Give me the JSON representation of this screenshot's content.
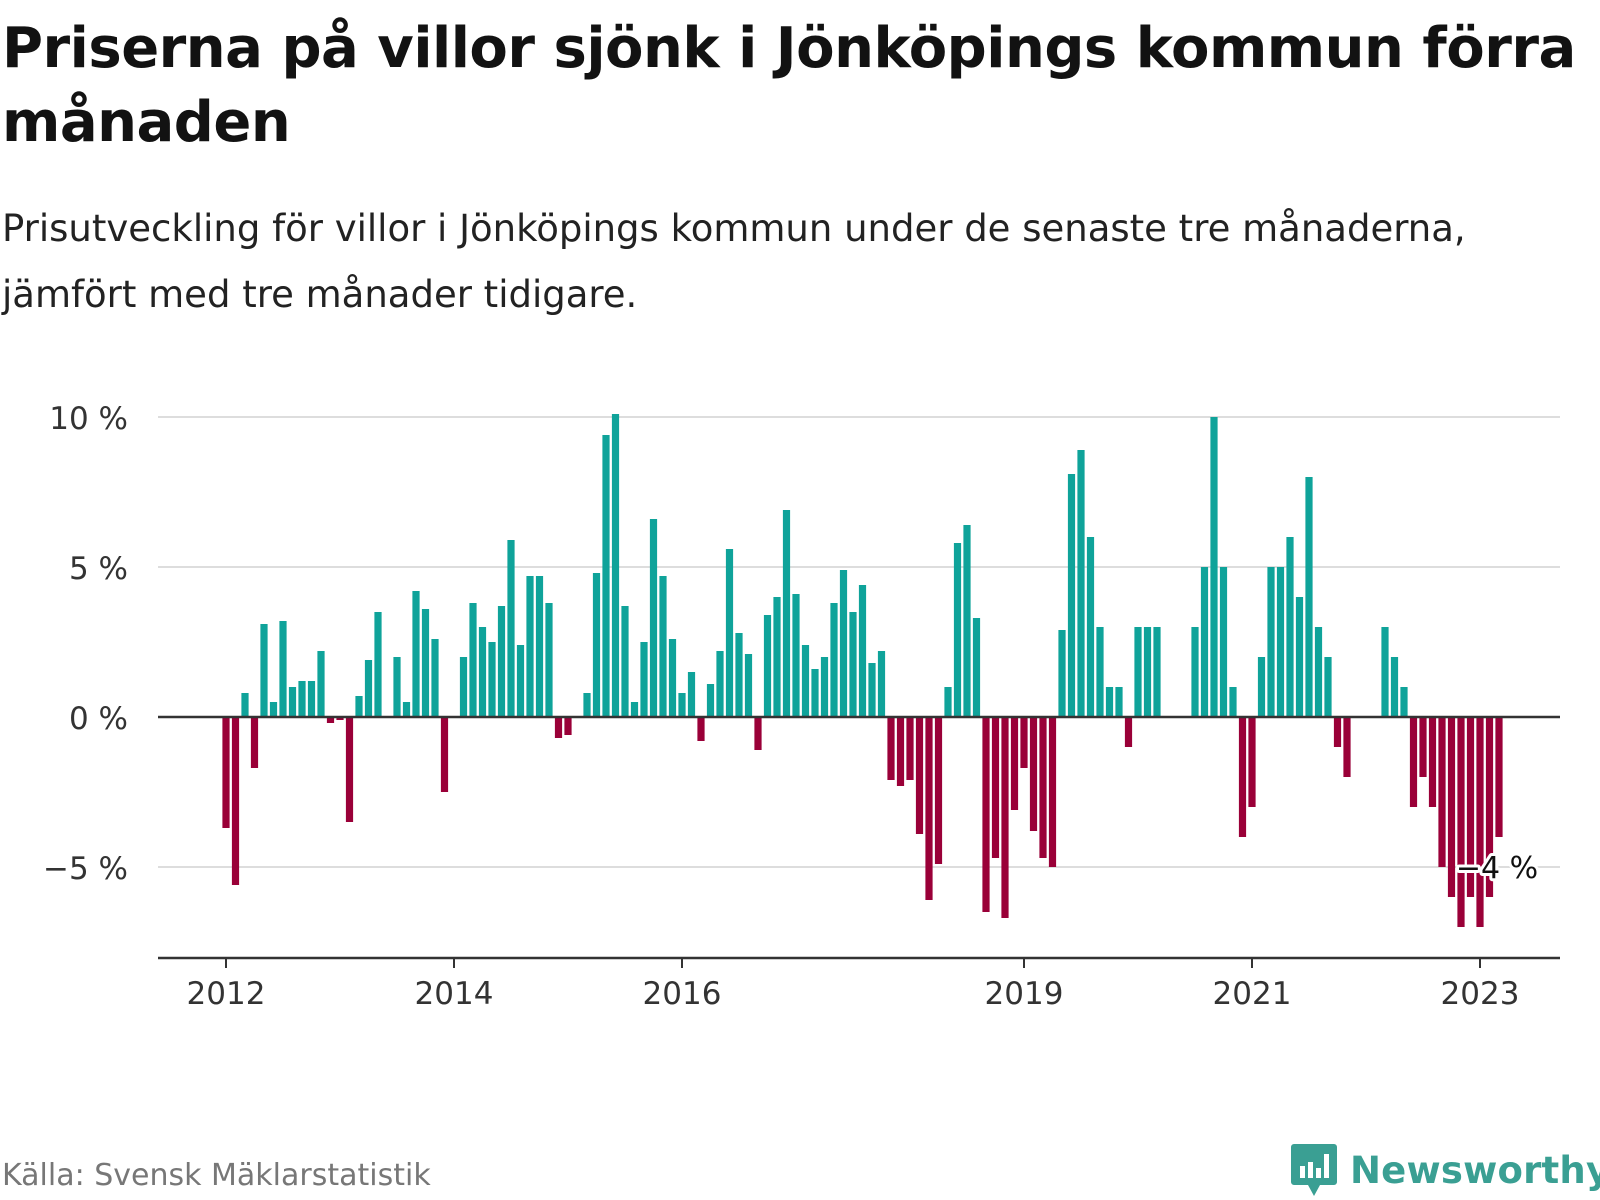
{
  "title": "Priserna på villor sjönk i Jönköpings kommun förra månaden",
  "subtitle": "Prisutveckling för villor i Jönköpings kommun under de senaste tre månaderna, jämfört med tre månader tidigare.",
  "source": "Källa: Svensk Mäklarstatistik",
  "brand": {
    "name": "Newsworthy",
    "icon": "newsworthy-logo-icon",
    "color": "#3a9f93"
  },
  "colors": {
    "positive": "#0fa39a",
    "negative": "#9a0038",
    "grid": "#dddddd",
    "axis": "#333333"
  },
  "chart_data": {
    "type": "bar",
    "title": "Priserna på villor sjönk i Jönköpings kommun förra månaden",
    "xlabel": "",
    "ylabel": "",
    "unit": "%",
    "ylim": [
      -8,
      10
    ],
    "y_ticks": [
      {
        "value": 10,
        "label": "10 %"
      },
      {
        "value": 5,
        "label": "5 %"
      },
      {
        "value": 0,
        "label": "0 %"
      },
      {
        "value": -5,
        "label": "−5 %"
      }
    ],
    "x_range": [
      "2011-06",
      "2023-07"
    ],
    "x_ticks": [
      {
        "month": "2012-01",
        "label": "2012"
      },
      {
        "month": "2014-01",
        "label": "2014"
      },
      {
        "month": "2016-01",
        "label": "2016"
      },
      {
        "month": "2019-01",
        "label": "2019"
      },
      {
        "month": "2021-01",
        "label": "2021"
      },
      {
        "month": "2023-01",
        "label": "2023"
      }
    ],
    "last_value_label": "−4 %",
    "series": [
      {
        "name": "Prisutveckling",
        "values": [
          [
            "2012-01",
            -3.7
          ],
          [
            "2012-02",
            -5.6
          ],
          [
            "2012-03",
            0.8
          ],
          [
            "2012-04",
            -1.7
          ],
          [
            "2012-05",
            3.1
          ],
          [
            "2012-06",
            0.5
          ],
          [
            "2012-07",
            3.2
          ],
          [
            "2012-08",
            1.0
          ],
          [
            "2012-09",
            1.2
          ],
          [
            "2012-10",
            1.2
          ],
          [
            "2012-11",
            2.2
          ],
          [
            "2012-12",
            -0.2
          ],
          [
            "2013-01",
            -0.1
          ],
          [
            "2013-02",
            -3.5
          ],
          [
            "2013-03",
            0.7
          ],
          [
            "2013-04",
            1.9
          ],
          [
            "2013-05",
            3.5
          ],
          [
            "2013-06",
            0.0
          ],
          [
            "2013-07",
            2.0
          ],
          [
            "2013-08",
            0.5
          ],
          [
            "2013-09",
            4.2
          ],
          [
            "2013-10",
            3.6
          ],
          [
            "2013-11",
            2.6
          ],
          [
            "2013-12",
            -2.5
          ],
          [
            "2014-01",
            0.0
          ],
          [
            "2014-02",
            2.0
          ],
          [
            "2014-03",
            3.8
          ],
          [
            "2014-04",
            3.0
          ],
          [
            "2014-05",
            2.5
          ],
          [
            "2014-06",
            3.7
          ],
          [
            "2014-07",
            5.9
          ],
          [
            "2014-08",
            2.4
          ],
          [
            "2014-09",
            4.7
          ],
          [
            "2014-10",
            4.7
          ],
          [
            "2014-11",
            3.8
          ],
          [
            "2014-12",
            -0.7
          ],
          [
            "2015-01",
            -0.6
          ],
          [
            "2015-02",
            0.0
          ],
          [
            "2015-03",
            0.8
          ],
          [
            "2015-04",
            4.8
          ],
          [
            "2015-05",
            9.4
          ],
          [
            "2015-06",
            10.1
          ],
          [
            "2015-07",
            3.7
          ],
          [
            "2015-08",
            0.5
          ],
          [
            "2015-09",
            2.5
          ],
          [
            "2015-10",
            6.6
          ],
          [
            "2015-11",
            4.7
          ],
          [
            "2015-12",
            2.6
          ],
          [
            "2016-01",
            0.8
          ],
          [
            "2016-02",
            1.5
          ],
          [
            "2016-03",
            -0.8
          ],
          [
            "2016-04",
            1.1
          ],
          [
            "2016-05",
            2.2
          ],
          [
            "2016-06",
            5.6
          ],
          [
            "2016-07",
            2.8
          ],
          [
            "2016-08",
            2.1
          ],
          [
            "2016-09",
            -1.1
          ],
          [
            "2016-10",
            3.4
          ],
          [
            "2016-11",
            4.0
          ],
          [
            "2016-12",
            6.9
          ],
          [
            "2017-01",
            4.1
          ],
          [
            "2017-02",
            2.4
          ],
          [
            "2017-03",
            1.6
          ],
          [
            "2017-04",
            2.0
          ],
          [
            "2017-05",
            3.8
          ],
          [
            "2017-06",
            4.9
          ],
          [
            "2017-07",
            3.5
          ],
          [
            "2017-08",
            4.4
          ],
          [
            "2017-09",
            1.8
          ],
          [
            "2017-10",
            2.2
          ],
          [
            "2017-11",
            -2.1
          ],
          [
            "2017-12",
            -2.3
          ],
          [
            "2018-01",
            -2.1
          ],
          [
            "2018-02",
            -3.9
          ],
          [
            "2018-03",
            -6.1
          ],
          [
            "2018-04",
            -4.9
          ],
          [
            "2018-05",
            1.0
          ],
          [
            "2018-06",
            5.8
          ],
          [
            "2018-07",
            6.4
          ],
          [
            "2018-08",
            3.3
          ],
          [
            "2018-09",
            -6.5
          ],
          [
            "2018-10",
            -4.7
          ],
          [
            "2018-11",
            -6.7
          ],
          [
            "2018-12",
            -3.1
          ],
          [
            "2019-01",
            -1.7
          ],
          [
            "2019-02",
            -3.8
          ],
          [
            "2019-03",
            -4.7
          ],
          [
            "2019-04",
            -5.0
          ],
          [
            "2019-05",
            2.9
          ],
          [
            "2019-06",
            8.1
          ],
          [
            "2019-07",
            8.9
          ],
          [
            "2019-08",
            6.0
          ],
          [
            "2019-09",
            3.0
          ],
          [
            "2019-10",
            1.0
          ],
          [
            "2019-11",
            1.0
          ],
          [
            "2019-12",
            -1.0
          ],
          [
            "2020-01",
            3.0
          ],
          [
            "2020-02",
            3.0
          ],
          [
            "2020-03",
            3.0
          ],
          [
            "2020-07",
            3.0
          ],
          [
            "2020-08",
            5.0
          ],
          [
            "2020-09",
            10.0
          ],
          [
            "2020-10",
            5.0
          ],
          [
            "2020-11",
            1.0
          ],
          [
            "2020-12",
            -4.0
          ],
          [
            "2021-01",
            -3.0
          ],
          [
            "2021-02",
            2.0
          ],
          [
            "2021-03",
            5.0
          ],
          [
            "2021-04",
            5.0
          ],
          [
            "2021-05",
            6.0
          ],
          [
            "2021-06",
            4.0
          ],
          [
            "2021-07",
            8.0
          ],
          [
            "2021-08",
            3.0
          ],
          [
            "2021-09",
            2.0
          ],
          [
            "2021-10",
            -1.0
          ],
          [
            "2021-11",
            -2.0
          ],
          [
            "2022-03",
            3.0
          ],
          [
            "2022-04",
            2.0
          ],
          [
            "2022-05",
            1.0
          ],
          [
            "2022-06",
            -3.0
          ],
          [
            "2022-07",
            -2.0
          ],
          [
            "2022-08",
            -3.0
          ],
          [
            "2022-09",
            -5.0
          ],
          [
            "2022-10",
            -6.0
          ],
          [
            "2022-11",
            -7.0
          ],
          [
            "2022-12",
            -6.0
          ],
          [
            "2023-01",
            -7.0
          ],
          [
            "2023-02",
            -6.0
          ],
          [
            "2023-03",
            -4.0
          ]
        ]
      }
    ]
  }
}
